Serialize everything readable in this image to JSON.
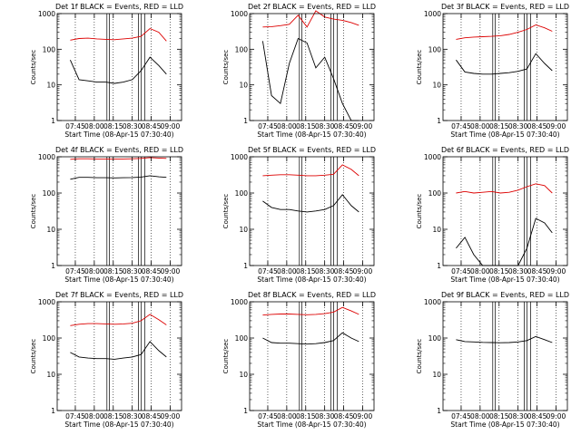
{
  "figure": {
    "background": "#ffffff",
    "axis_color": "#000000",
    "events_color": "#000000",
    "lld_color": "#dd0000"
  },
  "chart_data": [
    {
      "type": "line",
      "title": "Det 1f BLACK = Events, RED = LLD",
      "ylabel": "Counts/sec",
      "xlabel": "Start Time (08-Apr-15 07:30:40)",
      "yscale": "log",
      "ylim": [
        1,
        1000
      ],
      "yticks": [
        "1",
        "10",
        "100",
        "1000"
      ],
      "xticks": [
        "07:45",
        "08:00",
        "08:15",
        "08:30",
        "08:45",
        "09:00"
      ],
      "x": [
        "07:41",
        "07:48",
        "07:55",
        "08:02",
        "08:09",
        "08:16",
        "08:23",
        "08:30",
        "08:37",
        "08:44",
        "08:51",
        "08:57"
      ],
      "series": [
        {
          "name": "LLD",
          "color": "#dd0000",
          "values": [
            180,
            200,
            205,
            195,
            190,
            185,
            195,
            205,
            230,
            380,
            300,
            170
          ]
        },
        {
          "name": "Events",
          "color": "#000000",
          "values": [
            50,
            14,
            13,
            12,
            12,
            11,
            12,
            14,
            25,
            60,
            35,
            20
          ]
        }
      ]
    },
    {
      "type": "line",
      "title": "Det 2f BLACK = Events, RED = LLD",
      "ylabel": "Counts/sec",
      "xlabel": "Start Time (08-Apr-15 07:30:40)",
      "yscale": "log",
      "ylim": [
        1,
        1000
      ],
      "yticks": [
        "1",
        "10",
        "100",
        "1000"
      ],
      "xticks": [
        "07:45",
        "08:00",
        "08:15",
        "08:30",
        "08:45",
        "09:00"
      ],
      "x": [
        "07:41",
        "07:48",
        "07:55",
        "08:02",
        "08:09",
        "08:16",
        "08:23",
        "08:30",
        "08:37",
        "08:44",
        "08:51",
        "08:57"
      ],
      "series": [
        {
          "name": "LLD",
          "color": "#dd0000",
          "values": [
            420,
            430,
            460,
            500,
            900,
            420,
            1200,
            800,
            700,
            650,
            560,
            470
          ]
        },
        {
          "name": "Events",
          "color": "#000000",
          "values": [
            170,
            5,
            3,
            40,
            200,
            150,
            30,
            60,
            15,
            3,
            1,
            1
          ]
        }
      ]
    },
    {
      "type": "line",
      "title": "Det 3f BLACK = Events, RED = LLD",
      "ylabel": "Counts/sec",
      "xlabel": "Start Time (08-Apr-15 07:30:40)",
      "yscale": "log",
      "ylim": [
        1,
        1000
      ],
      "yticks": [
        "1",
        "10",
        "100",
        "1000"
      ],
      "xticks": [
        "07:45",
        "08:00",
        "08:15",
        "08:30",
        "08:45",
        "09:00"
      ],
      "x": [
        "07:41",
        "07:48",
        "07:55",
        "08:02",
        "08:09",
        "08:16",
        "08:23",
        "08:30",
        "08:37",
        "08:44",
        "08:51",
        "08:57"
      ],
      "series": [
        {
          "name": "LLD",
          "color": "#dd0000",
          "values": [
            190,
            210,
            220,
            225,
            230,
            240,
            260,
            300,
            360,
            480,
            400,
            320
          ]
        },
        {
          "name": "Events",
          "color": "#000000",
          "values": [
            50,
            23,
            21,
            20,
            20,
            21,
            22,
            24,
            28,
            75,
            40,
            25
          ]
        }
      ]
    },
    {
      "type": "line",
      "title": "Det 4f BLACK = Events, RED = LLD",
      "ylabel": "Counts/sec",
      "xlabel": "Start Time (08-Apr-15 07:30:40)",
      "yscale": "log",
      "ylim": [
        1,
        1000
      ],
      "yticks": [
        "1",
        "10",
        "100",
        "1000"
      ],
      "xticks": [
        "07:45",
        "08:00",
        "08:15",
        "08:30",
        "08:45",
        "09:00"
      ],
      "x": [
        "07:41",
        "07:48",
        "07:55",
        "08:02",
        "08:09",
        "08:16",
        "08:23",
        "08:30",
        "08:37",
        "08:44",
        "08:51",
        "08:57"
      ],
      "series": [
        {
          "name": "LLD",
          "color": "#dd0000",
          "values": [
            850,
            880,
            880,
            870,
            870,
            860,
            870,
            880,
            900,
            950,
            920,
            900
          ]
        },
        {
          "name": "Events",
          "color": "#000000",
          "values": [
            240,
            270,
            270,
            265,
            265,
            262,
            265,
            268,
            275,
            300,
            280,
            270
          ]
        }
      ]
    },
    {
      "type": "line",
      "title": "Det 5f BLACK = Events, RED = LLD",
      "ylabel": "Counts/sec",
      "xlabel": "Start Time (08-Apr-15 07:30:40)",
      "yscale": "log",
      "ylim": [
        1,
        1000
      ],
      "yticks": [
        "1",
        "10",
        "100",
        "1000"
      ],
      "xticks": [
        "07:45",
        "08:00",
        "08:15",
        "08:30",
        "08:45",
        "09:00"
      ],
      "x": [
        "07:41",
        "07:48",
        "07:55",
        "08:02",
        "08:09",
        "08:16",
        "08:23",
        "08:30",
        "08:37",
        "08:44",
        "08:51",
        "08:57"
      ],
      "series": [
        {
          "name": "LLD",
          "color": "#dd0000",
          "values": [
            300,
            310,
            320,
            320,
            310,
            300,
            300,
            310,
            330,
            600,
            450,
            300
          ]
        },
        {
          "name": "Events",
          "color": "#000000",
          "values": [
            60,
            40,
            35,
            35,
            32,
            30,
            32,
            35,
            45,
            90,
            45,
            30
          ]
        }
      ]
    },
    {
      "type": "line",
      "title": "Det 6f BLACK = Events, RED = LLD",
      "ylabel": "Counts/sec",
      "xlabel": "Start Time (08-Apr-15 07:30:40)",
      "yscale": "log",
      "ylim": [
        1,
        1000
      ],
      "yticks": [
        "1",
        "10",
        "100",
        "1000"
      ],
      "xticks": [
        "07:45",
        "08:00",
        "08:15",
        "08:30",
        "08:45",
        "09:00"
      ],
      "x": [
        "07:41",
        "07:48",
        "07:55",
        "08:02",
        "08:09",
        "08:16",
        "08:23",
        "08:30",
        "08:37",
        "08:44",
        "08:51",
        "08:57"
      ],
      "series": [
        {
          "name": "LLD",
          "color": "#dd0000",
          "values": [
            100,
            110,
            100,
            105,
            110,
            100,
            105,
            120,
            150,
            180,
            160,
            100
          ]
        },
        {
          "name": "Events",
          "color": "#000000",
          "values": [
            3,
            6,
            2,
            1,
            1,
            1,
            1,
            1,
            3,
            20,
            15,
            8
          ]
        }
      ]
    },
    {
      "type": "line",
      "title": "Det 7f BLACK = Events, RED = LLD",
      "ylabel": "Counts/sec",
      "xlabel": "Start Time (08-Apr-15 07:30:40)",
      "yscale": "log",
      "ylim": [
        1,
        1000
      ],
      "yticks": [
        "1",
        "10",
        "100",
        "1000"
      ],
      "xticks": [
        "07:45",
        "08:00",
        "08:15",
        "08:30",
        "08:45",
        "09:00"
      ],
      "x": [
        "07:41",
        "07:48",
        "07:55",
        "08:02",
        "08:09",
        "08:16",
        "08:23",
        "08:30",
        "08:37",
        "08:44",
        "08:51",
        "08:57"
      ],
      "series": [
        {
          "name": "LLD",
          "color": "#dd0000",
          "values": [
            220,
            240,
            250,
            250,
            245,
            240,
            245,
            255,
            300,
            450,
            320,
            230
          ]
        },
        {
          "name": "Events",
          "color": "#000000",
          "values": [
            40,
            30,
            28,
            27,
            27,
            26,
            28,
            30,
            35,
            80,
            45,
            30
          ]
        }
      ]
    },
    {
      "type": "line",
      "title": "Det 8f BLACK = Events, RED = LLD",
      "ylabel": "Counts/sec",
      "xlabel": "Start Time (08-Apr-15 07:30:40)",
      "yscale": "log",
      "ylim": [
        1,
        1000
      ],
      "yticks": [
        "1",
        "10",
        "100",
        "1000"
      ],
      "xticks": [
        "07:45",
        "08:00",
        "08:15",
        "08:30",
        "08:45",
        "09:00"
      ],
      "x": [
        "07:41",
        "07:48",
        "07:55",
        "08:02",
        "08:09",
        "08:16",
        "08:23",
        "08:30",
        "08:37",
        "08:44",
        "08:51",
        "08:57"
      ],
      "series": [
        {
          "name": "LLD",
          "color": "#dd0000",
          "values": [
            430,
            450,
            460,
            460,
            450,
            440,
            450,
            470,
            520,
            700,
            560,
            450
          ]
        },
        {
          "name": "Events",
          "color": "#000000",
          "values": [
            100,
            75,
            72,
            72,
            70,
            68,
            70,
            75,
            85,
            140,
            100,
            80
          ]
        }
      ]
    },
    {
      "type": "line",
      "title": "Det 9f BLACK = Events, RED = LLD",
      "ylabel": "Counts/sec",
      "xlabel": "Start Time (08-Apr-15 07:30:40)",
      "yscale": "log",
      "ylim": [
        1,
        1000
      ],
      "yticks": [
        "1",
        "10",
        "100",
        "1000"
      ],
      "xticks": [
        "07:45",
        "08:00",
        "08:15",
        "08:30",
        "08:45",
        "09:00"
      ],
      "x": [
        "07:41",
        "07:48",
        "07:55",
        "08:02",
        "08:09",
        "08:16",
        "08:23",
        "08:30",
        "08:37",
        "08:44",
        "08:51",
        "08:57"
      ],
      "series": [
        {
          "name": "Events",
          "color": "#000000",
          "values": [
            90,
            80,
            78,
            76,
            75,
            74,
            75,
            78,
            85,
            110,
            90,
            75
          ]
        }
      ]
    }
  ]
}
